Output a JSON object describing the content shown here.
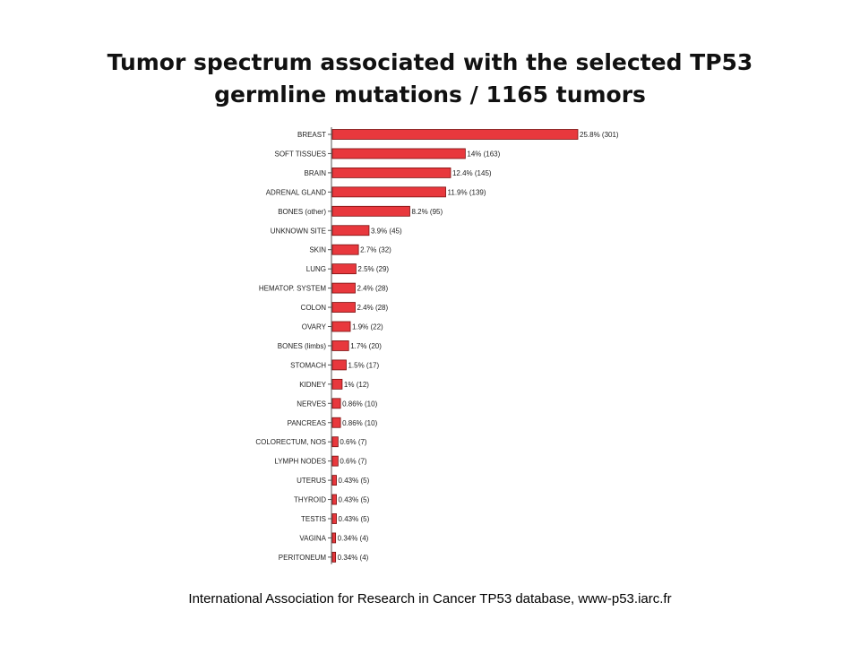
{
  "slide": {
    "title_line1": "Tumor spectrum associated with the selected TP53",
    "title_line2": "germline mutations / 1165 tumors",
    "footer": "International Association for Research in Cancer TP53 database, www-p53.iarc.fr"
  },
  "chart_data": {
    "type": "bar",
    "orientation": "horizontal",
    "bar_color": "#e8383d",
    "bar_edge_color": "#7a1010",
    "categories": [
      "BREAST",
      "SOFT TISSUES",
      "BRAIN",
      "ADRENAL GLAND",
      "BONES (other)",
      "UNKNOWN SITE",
      "SKIN",
      "LUNG",
      "HEMATOP. SYSTEM",
      "COLON",
      "OVARY",
      "BONES (limbs)",
      "STOMACH",
      "KIDNEY",
      "NERVES",
      "PANCREAS",
      "COLORECTUM, NOS",
      "LYMPH NODES",
      "UTERUS",
      "THYROID",
      "TESTIS",
      "VAGINA",
      "PERITONEUM"
    ],
    "values": [
      301,
      163,
      145,
      139,
      95,
      45,
      32,
      29,
      28,
      28,
      22,
      20,
      17,
      12,
      10,
      10,
      7,
      7,
      5,
      5,
      5,
      4,
      4
    ],
    "data_labels": [
      "25.8% (301)",
      "14% (163)",
      "12.4% (145)",
      "11.9% (139)",
      "8.2% (95)",
      "3.9% (45)",
      "2.7% (32)",
      "2.5% (29)",
      "2.4% (28)",
      "2.4% (28)",
      "1.9% (22)",
      "1.7% (20)",
      "1.5% (17)",
      "1% (12)",
      "0.86% (10)",
      "0.86% (10)",
      "0.6% (7)",
      "0.6% (7)",
      "0.43% (5)",
      "0.43% (5)",
      "0.43% (5)",
      "0.34% (4)",
      "0.34% (4)"
    ],
    "xlim": [
      0,
      301
    ]
  }
}
